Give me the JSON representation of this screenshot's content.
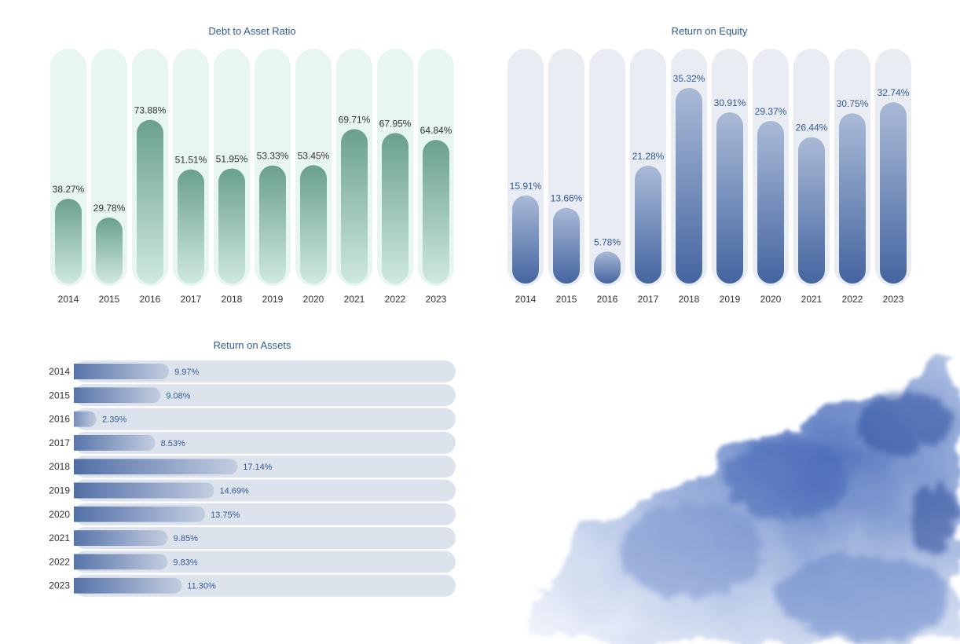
{
  "chart_data": [
    {
      "type": "bar",
      "title": "Debt to Asset Ratio",
      "categories": [
        "2014",
        "2015",
        "2016",
        "2017",
        "2018",
        "2019",
        "2020",
        "2021",
        "2022",
        "2023"
      ],
      "values": [
        38.27,
        29.78,
        73.88,
        51.51,
        51.95,
        53.33,
        53.45,
        69.71,
        67.95,
        64.84
      ],
      "labels": [
        "38.27%",
        "29.78%",
        "73.88%",
        "51.51%",
        "51.95%",
        "53.33%",
        "53.45%",
        "69.71%",
        "67.95%",
        "64.84%"
      ],
      "ylim": [
        0,
        100
      ],
      "grid": false,
      "colors": {
        "bar_top": "#6aa08c",
        "bar_bottom": "#cfe9df",
        "track": "#e8f6f2",
        "label": "#333333",
        "tick": "#333333"
      }
    },
    {
      "type": "bar",
      "title": "Return on Equity",
      "categories": [
        "2014",
        "2015",
        "2016",
        "2017",
        "2018",
        "2019",
        "2020",
        "2021",
        "2022",
        "2023"
      ],
      "values": [
        15.91,
        13.66,
        5.78,
        21.28,
        35.32,
        30.91,
        29.37,
        26.44,
        30.75,
        32.74
      ],
      "labels": [
        "15.91%",
        "13.66%",
        "5.78%",
        "21.28%",
        "35.32%",
        "30.91%",
        "29.37%",
        "26.44%",
        "30.75%",
        "32.74%"
      ],
      "ylim": [
        0,
        40
      ],
      "grid": false,
      "colors": {
        "bar_top": "#a9bad6",
        "bar_bottom": "#4565a0",
        "track": "#e9ecf3",
        "label": "#2f5a96",
        "tick": "#333333"
      }
    },
    {
      "type": "bar",
      "orientation": "horizontal",
      "title": "Return on Assets",
      "categories": [
        "2014",
        "2015",
        "2016",
        "2017",
        "2018",
        "2019",
        "2020",
        "2021",
        "2022",
        "2023"
      ],
      "values": [
        9.97,
        9.08,
        2.39,
        8.53,
        17.14,
        14.69,
        13.75,
        9.85,
        9.83,
        11.3
      ],
      "labels": [
        "9.97%",
        "9.08%",
        "2.39%",
        "8.53%",
        "17.14%",
        "14.69%",
        "13.75%",
        "9.85%",
        "9.83%",
        "11.30%"
      ],
      "xlim": [
        0,
        40
      ],
      "grid": false,
      "colors": {
        "bar_left": "#4565a0",
        "bar_right": "#c3cde0",
        "track": "#dde3ec",
        "label": "#2f5a96",
        "tick": "#333333"
      }
    }
  ],
  "decoration": {
    "watercolor_color": "#3f63b5"
  }
}
